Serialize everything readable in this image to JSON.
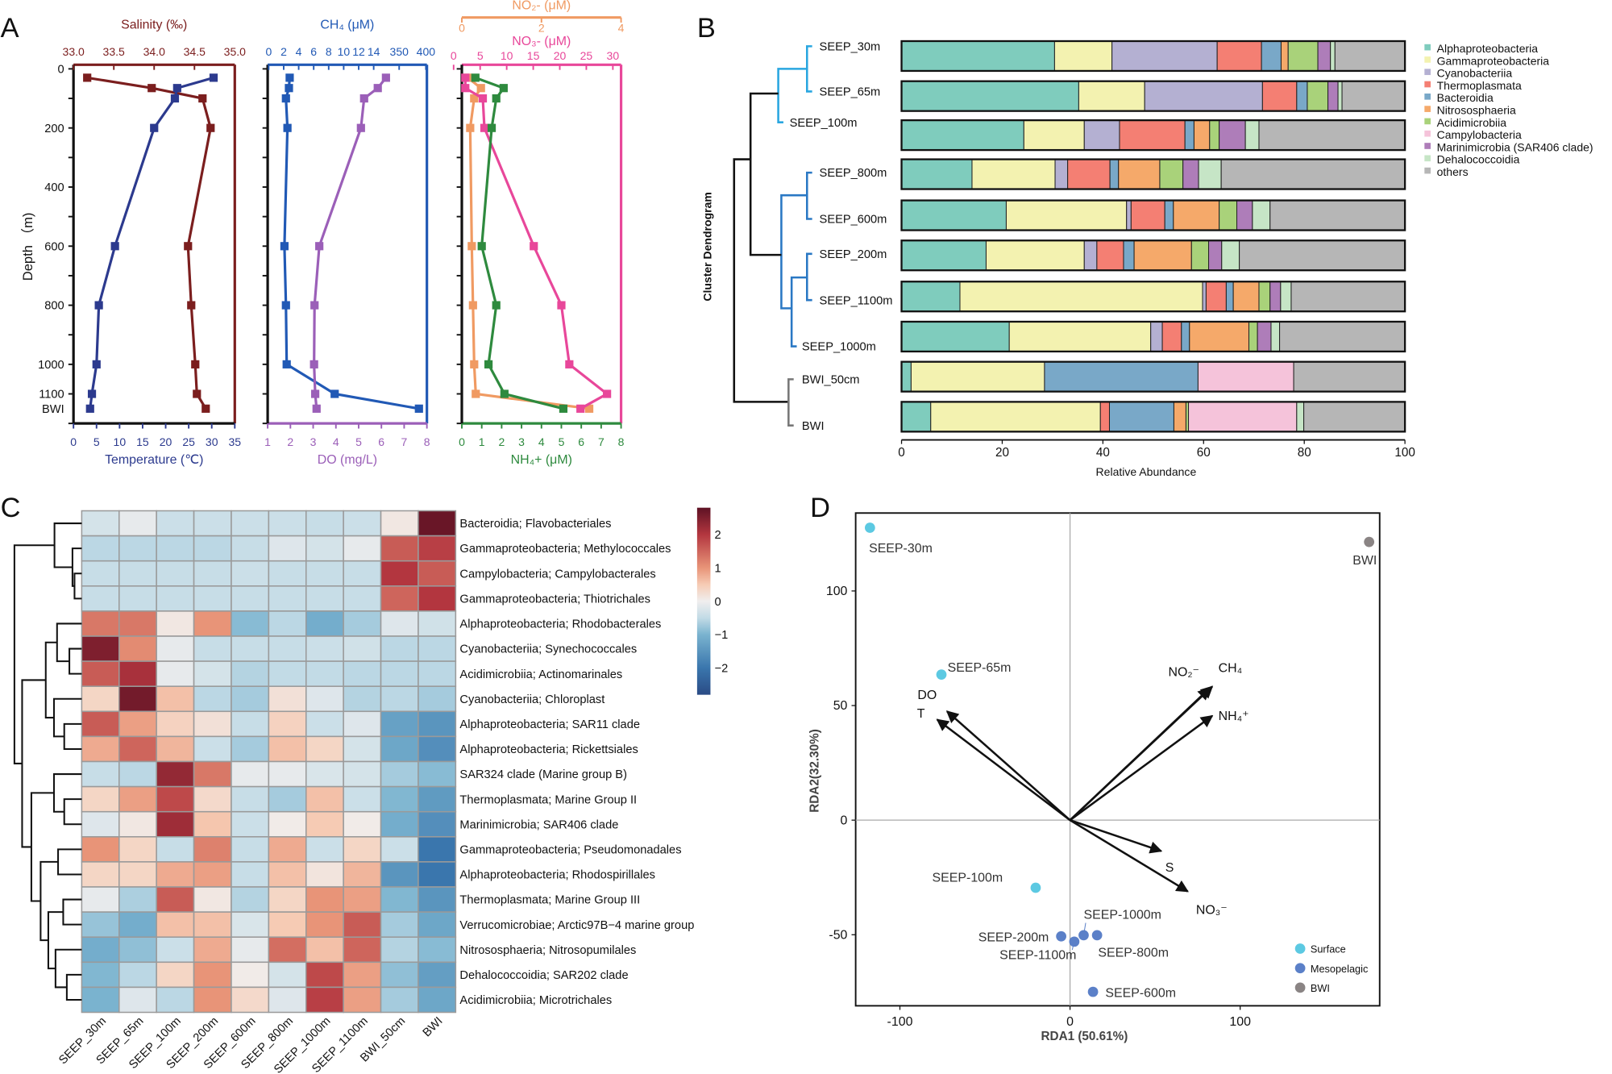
{
  "panels": {
    "a": "A",
    "b": "B",
    "c": "C",
    "d": "D"
  },
  "chart_data": [
    {
      "type": "line",
      "panel": "A",
      "ylabel": "Depth （m)",
      "y_tick_labels": [
        "0",
        "200",
        "400",
        "600",
        "800",
        "1000",
        "1100",
        "BWI"
      ],
      "y_tick_values": [
        0,
        200,
        400,
        600,
        800,
        1000,
        1100,
        "BWI"
      ],
      "depth": [
        30,
        65,
        100,
        200,
        600,
        800,
        1000,
        1100,
        "BWI"
      ],
      "axes": [
        {
          "title": "Salinity (‰)",
          "color": "#7b1e1e",
          "range": [
            33.0,
            35.0
          ],
          "tick_values": [
            33.0,
            33.5,
            34.0,
            34.5,
            35.0
          ],
          "tick_labels": [
            "33.0",
            "33.5",
            "34.0",
            "34.5",
            "35.0"
          ]
        },
        {
          "title": "Temperature (℃)",
          "color": "#2c3a8e",
          "range": [
            0,
            35
          ],
          "tick_values": [
            0,
            5,
            10,
            15,
            20,
            25,
            30,
            35
          ],
          "tick_labels": [
            "0",
            "5",
            "10",
            "15",
            "20",
            "25",
            "30",
            "35"
          ]
        }
      ],
      "series": [
        {
          "axis": 0,
          "color": "#7b1e1e",
          "values": [
            33.17,
            33.97,
            34.6,
            34.7,
            34.42,
            34.46,
            34.51,
            34.53,
            34.64
          ]
        },
        {
          "axis": 1,
          "color": "#2c3a8e",
          "values": [
            30.4,
            22.5,
            22.0,
            17.5,
            9.0,
            5.5,
            5.0,
            4.0,
            3.6
          ]
        }
      ]
    },
    {
      "type": "line",
      "panel": "A",
      "depth": [
        30,
        65,
        100,
        200,
        600,
        800,
        1000,
        1100,
        "BWI"
      ],
      "axes": [
        {
          "title": "CH₄ (μM)",
          "color": "#2159b5",
          "range": [
            0,
            400
          ],
          "tick_values": [
            0,
            2,
            4,
            6,
            8,
            10,
            12,
            14,
            350,
            400
          ],
          "tick_labels": [
            "0",
            "2",
            "4",
            "6",
            "8",
            "10",
            "12",
            "14",
            "350",
            "400"
          ]
        },
        {
          "title": "DO (mg/L)",
          "color": "#9b5fb8",
          "range": [
            1,
            8
          ],
          "tick_values": [
            1,
            2,
            3,
            4,
            5,
            6,
            7,
            8
          ],
          "tick_labels": [
            "1",
            "2",
            "3",
            "4",
            "5",
            "6",
            "7",
            "8"
          ]
        }
      ],
      "series": [
        {
          "axis": 0,
          "color": "#2159b5",
          "values": [
            2.8,
            2.7,
            2.3,
            2.5,
            2.1,
            2.3,
            2.4,
            8.8,
            387
          ]
        },
        {
          "axis": 1,
          "color": "#9b5fb8",
          "values": [
            6.2,
            5.84,
            5.24,
            5.1,
            3.27,
            3.06,
            3.04,
            3.09,
            3.15
          ]
        }
      ]
    },
    {
      "type": "line",
      "panel": "A",
      "depth": [
        30,
        65,
        100,
        200,
        600,
        800,
        1000,
        1100,
        "BWI"
      ],
      "axes": [
        {
          "title": "NO₂- (μM)",
          "color": "#f09a62",
          "range": [
            0,
            4
          ],
          "tick_values": [
            0,
            2,
            4
          ],
          "tick_labels": [
            "0",
            "2",
            "4"
          ]
        },
        {
          "title": "NO₃- (μM)",
          "color": "#e8479a",
          "range": [
            0,
            30
          ],
          "tick_values": [
            0,
            5,
            10,
            15,
            20,
            25,
            30
          ],
          "tick_labels": [
            "0",
            "5",
            "10",
            "15",
            "20",
            "25",
            "30"
          ]
        },
        {
          "title": "NH₄+ (μM)",
          "color": "#2e8a3e",
          "range": [
            0,
            8
          ],
          "tick_values": [
            0,
            1,
            2,
            3,
            4,
            5,
            6,
            7,
            8
          ],
          "tick_labels": [
            "0",
            "1",
            "2",
            "3",
            "4",
            "5",
            "6",
            "7",
            "8"
          ]
        }
      ],
      "series": [
        {
          "axis": 0,
          "color": "#f09a62",
          "values": [
            0.15,
            0.48,
            0.31,
            0.21,
            0.25,
            0.28,
            0.31,
            0.35,
            3.2
          ]
        },
        {
          "axis": 1,
          "color": "#e8479a",
          "values": [
            2.2,
            2.2,
            5.5,
            5.8,
            15.1,
            20.3,
            21.8,
            28.9,
            23.9
          ]
        },
        {
          "axis": 2,
          "color": "#2e8a3e",
          "values": [
            0.68,
            2.1,
            1.73,
            1.5,
            1.0,
            1.73,
            1.34,
            2.14,
            5.1
          ]
        }
      ]
    },
    {
      "type": "bar",
      "panel": "B",
      "orientation": "horizontal",
      "stacked": true,
      "categories": [
        "SEEP_30m",
        "SEEP_65m",
        "SEEP_100m",
        "SEEP_800m",
        "SEEP_600m",
        "SEEP_200m",
        "SEEP_1100m",
        "SEEP_1000m",
        "BWI_50cm",
        "BWI"
      ],
      "xlabel": "Relative Abundance",
      "xlim": [
        0,
        100
      ],
      "x_tick_labels": [
        "0",
        "20",
        "40",
        "60",
        "80",
        "100"
      ],
      "dendrogram_label": "Cluster Dendrogram",
      "legend": "right",
      "series": [
        {
          "name": "Alphaproteobacteria",
          "color": "#7fccbd",
          "values": [
            30.4,
            35.2,
            24.3,
            14.0,
            20.8,
            16.8,
            11.6,
            21.4,
            1.9,
            5.8
          ]
        },
        {
          "name": "Gammaproteobacteria",
          "color": "#f3f2b0",
          "values": [
            11.4,
            13.1,
            12.0,
            16.5,
            23.9,
            19.5,
            48.2,
            28.1,
            26.5,
            33.7
          ]
        },
        {
          "name": "Cyanobacteriia",
          "color": "#b4b0d2",
          "values": [
            20.9,
            23.4,
            7.0,
            2.5,
            0.9,
            2.5,
            0.7,
            2.3,
            0,
            0
          ]
        },
        {
          "name": "Thermoplasmata",
          "color": "#f47f73",
          "values": [
            8.8,
            6.8,
            13.0,
            8.4,
            6.7,
            5.3,
            4.0,
            3.8,
            0,
            1.8
          ]
        },
        {
          "name": "Bacteroidia",
          "color": "#79a8c8",
          "values": [
            3.9,
            2.1,
            1.8,
            1.7,
            1.7,
            2.1,
            1.4,
            1.6,
            30.5,
            12.8
          ]
        },
        {
          "name": "Nitrososphaeria",
          "color": "#f5a96a",
          "values": [
            1.4,
            0,
            3.1,
            8.2,
            9.1,
            11.4,
            5.1,
            11.8,
            0,
            2.4
          ]
        },
        {
          "name": "Acidimicrobiia",
          "color": "#a9d27a",
          "values": [
            5.9,
            4.1,
            1.9,
            4.6,
            3.5,
            3.4,
            2.2,
            1.7,
            0,
            0.5
          ]
        },
        {
          "name": "Campylobacteria",
          "color": "#f5c3da",
          "values": [
            0,
            0,
            0,
            0,
            0,
            0,
            0,
            0,
            19.0,
            21.5
          ]
        },
        {
          "name": "Marinimicrobia (SAR406 clade)",
          "color": "#ae7db9",
          "values": [
            2.5,
            2.0,
            5.2,
            3.1,
            3.1,
            2.6,
            2.1,
            2.7,
            0,
            0
          ]
        },
        {
          "name": "Dehalococcoidia",
          "color": "#c6e5c6",
          "values": [
            0.9,
            0.8,
            2.7,
            4.5,
            3.5,
            3.5,
            2.1,
            1.7,
            0,
            1.4
          ]
        },
        {
          "name": "others",
          "color": "#b6b6b6",
          "values": [
            13.9,
            12.5,
            29.0,
            36.5,
            26.8,
            32.9,
            22.6,
            24.9,
            22.1,
            20.1
          ]
        }
      ]
    },
    {
      "type": "heatmap",
      "panel": "C",
      "columns": [
        "SEEP_30m",
        "SEEP_65m",
        "SEEP_100m",
        "SEEP_200m",
        "SEEP_600m",
        "SEEP_800m",
        "SEEP_1000m",
        "SEEP_1100m",
        "BWI_50cm",
        "BWI"
      ],
      "rows": [
        "Bacteroidia; Flavobacteriales",
        "Gammaproteobacteria; Methylococcales",
        "Campylobacteria; Campylobacterales",
        "Gammaproteobacteria; Thiotrichales",
        "Alphaproteobacteria; Rhodobacterales",
        "Cyanobacteriia; Synechococcales",
        "Acidimicrobiia; Actinomarinales",
        "Cyanobacteriia; Chloroplast",
        "Alphaproteobacteria; SAR11 clade",
        "Alphaproteobacteria; Rickettsiales",
        "SAR324 clade (Marine group B)",
        "Thermoplasmata; Marine Group II",
        "Marinimicrobia; SAR406 clade",
        "Gammaproteobacteria; Pseudomonadales",
        "Alphaproteobacteria; Rhodospirillales",
        "Thermoplasmata; Marine Group III",
        "Verrucomicrobiae; Arctic97B−4 marine group",
        "Nitrososphaeria; Nitrosopumilales",
        "Dehalococcoidia; SAR202 clade",
        "Acidimicrobiia; Microtrichales"
      ],
      "values": [
        [
          -0.3,
          -0.1,
          -0.4,
          -0.4,
          -0.4,
          -0.4,
          -0.45,
          -0.4,
          0.1,
          2.7
        ],
        [
          -0.55,
          -0.55,
          -0.55,
          -0.55,
          -0.45,
          -0.2,
          -0.3,
          -0.1,
          1.6,
          1.9
        ],
        [
          -0.45,
          -0.45,
          -0.45,
          -0.45,
          -0.4,
          -0.45,
          -0.45,
          -0.45,
          2.0,
          1.6
        ],
        [
          -0.45,
          -0.45,
          -0.45,
          -0.45,
          -0.45,
          -0.45,
          -0.45,
          -0.45,
          1.5,
          2.0
        ],
        [
          1.3,
          1.3,
          0.1,
          1.0,
          -0.9,
          -0.55,
          -1.1,
          -0.7,
          -0.2,
          -0.35
        ],
        [
          2.5,
          1.1,
          -0.1,
          -0.45,
          -0.45,
          -0.45,
          -0.4,
          -0.35,
          -0.55,
          -0.55
        ],
        [
          1.6,
          2.1,
          -0.1,
          -0.3,
          -0.6,
          -0.5,
          -0.5,
          -0.55,
          -0.55,
          -0.55
        ],
        [
          0.35,
          2.6,
          0.6,
          -0.55,
          -0.7,
          0.2,
          -0.2,
          -0.6,
          -0.55,
          -0.7
        ],
        [
          1.6,
          0.9,
          0.4,
          0.2,
          -0.45,
          0.4,
          -0.4,
          -0.2,
          -1.3,
          -1.5
        ],
        [
          0.8,
          1.5,
          0.7,
          -0.4,
          -0.7,
          0.6,
          0.35,
          -0.3,
          -1.2,
          -1.6
        ],
        [
          -0.45,
          -0.55,
          2.3,
          1.3,
          -0.1,
          -0.1,
          -0.25,
          -0.3,
          -0.7,
          -0.9
        ],
        [
          0.35,
          0.9,
          1.8,
          0.3,
          -0.45,
          -0.7,
          0.6,
          -0.4,
          -0.95,
          -1.4
        ],
        [
          -0.2,
          0.1,
          2.2,
          0.55,
          -0.4,
          0.05,
          0.5,
          0.05,
          -1.1,
          -1.6
        ],
        [
          1.0,
          0.35,
          -0.45,
          1.2,
          -0.45,
          0.8,
          -0.4,
          0.35,
          -0.4,
          -2.0
        ],
        [
          0.35,
          0.35,
          0.8,
          0.9,
          -0.45,
          0.6,
          0.15,
          0.7,
          -1.5,
          -2.0
        ],
        [
          -0.1,
          -0.65,
          1.6,
          0.1,
          -0.6,
          0.35,
          1.0,
          0.9,
          -0.95,
          -1.5
        ],
        [
          -0.8,
          -1.1,
          0.6,
          0.6,
          -0.25,
          0.5,
          1.0,
          1.6,
          -0.7,
          -1.2
        ],
        [
          -1.1,
          -0.85,
          -0.4,
          0.8,
          -0.1,
          1.4,
          0.6,
          1.5,
          -0.6,
          -0.9
        ],
        [
          -0.95,
          -0.55,
          0.35,
          1.0,
          0.05,
          -0.3,
          1.8,
          0.9,
          -0.85,
          -1.35
        ],
        [
          -1.0,
          -0.2,
          -0.55,
          1.0,
          0.3,
          -0.2,
          1.9,
          0.9,
          -0.7,
          -1.2
        ]
      ],
      "colorbar_range": [
        -2.8,
        2.8
      ],
      "colorbar_tick_values": [
        2,
        1,
        0,
        -1,
        -2
      ],
      "colorbar_tick_labels": [
        "2",
        "1",
        "0",
        "−1",
        "−2"
      ],
      "colorscale": [
        "#2a4b85",
        "#3a76ad",
        "#7ab3cf",
        "#c2dbe6",
        "#f0eeee",
        "#f6cbb4",
        "#e89478",
        "#b3363f",
        "#5e1224"
      ]
    },
    {
      "type": "scatter",
      "panel": "D",
      "xlabel": "RDA1 (50.61%)",
      "ylabel": "RDA2(32.30%)",
      "xlim": [
        -126,
        182
      ],
      "ylim": [
        -81,
        134
      ],
      "x_tick_values": [
        -100,
        0,
        100
      ],
      "x_tick_labels": [
        "-100",
        "0",
        "100"
      ],
      "y_tick_values": [
        -50,
        0,
        50,
        100
      ],
      "y_tick_labels": [
        "-50",
        "0",
        "50",
        "100"
      ],
      "legend": "bottom-right",
      "groups": [
        {
          "name": "Surface",
          "color": "#5cc9e2"
        },
        {
          "name": "Mesopelagic",
          "color": "#5b80c8"
        },
        {
          "name": "BWI",
          "color": "#8a8484"
        }
      ],
      "points": [
        {
          "label": "SEEP-30m",
          "group": 0,
          "x": -117.6,
          "y": 127.6
        },
        {
          "label": "SEEP-65m",
          "group": 0,
          "x": -75.6,
          "y": 63.5
        },
        {
          "label": "SEEP-100m",
          "group": 0,
          "x": -20.2,
          "y": -29.5
        },
        {
          "label": "SEEP-200m",
          "group": 1,
          "x": -5.2,
          "y": -50.7
        },
        {
          "label": "SEEP-1100m",
          "group": 1,
          "x": 2.5,
          "y": -53.0
        },
        {
          "label": "SEEP-1000m",
          "group": 1,
          "x": 8.0,
          "y": -50.2
        },
        {
          "label": "SEEP-800m",
          "group": 1,
          "x": 15.9,
          "y": -50.2
        },
        {
          "label": "SEEP-600m",
          "group": 1,
          "x": 13.5,
          "y": -74.9
        },
        {
          "label": "BWI",
          "group": 2,
          "x": 175.8,
          "y": 121.4
        }
      ],
      "vectors": [
        {
          "label": "DO",
          "x": -72.3,
          "y": 47.5
        },
        {
          "label": "T",
          "x": -78.1,
          "y": 43.9
        },
        {
          "label": "NO₂⁻",
          "x": 82.0,
          "y": 57.5
        },
        {
          "label": "CH₄",
          "x": 83.6,
          "y": 58.3
        },
        {
          "label": "NH₄⁺",
          "x": 83.6,
          "y": 45.5
        },
        {
          "label": "S",
          "x": 53.6,
          "y": -13.5
        },
        {
          "label": "NO₃⁻",
          "x": 69.2,
          "y": -31.1
        }
      ]
    }
  ]
}
